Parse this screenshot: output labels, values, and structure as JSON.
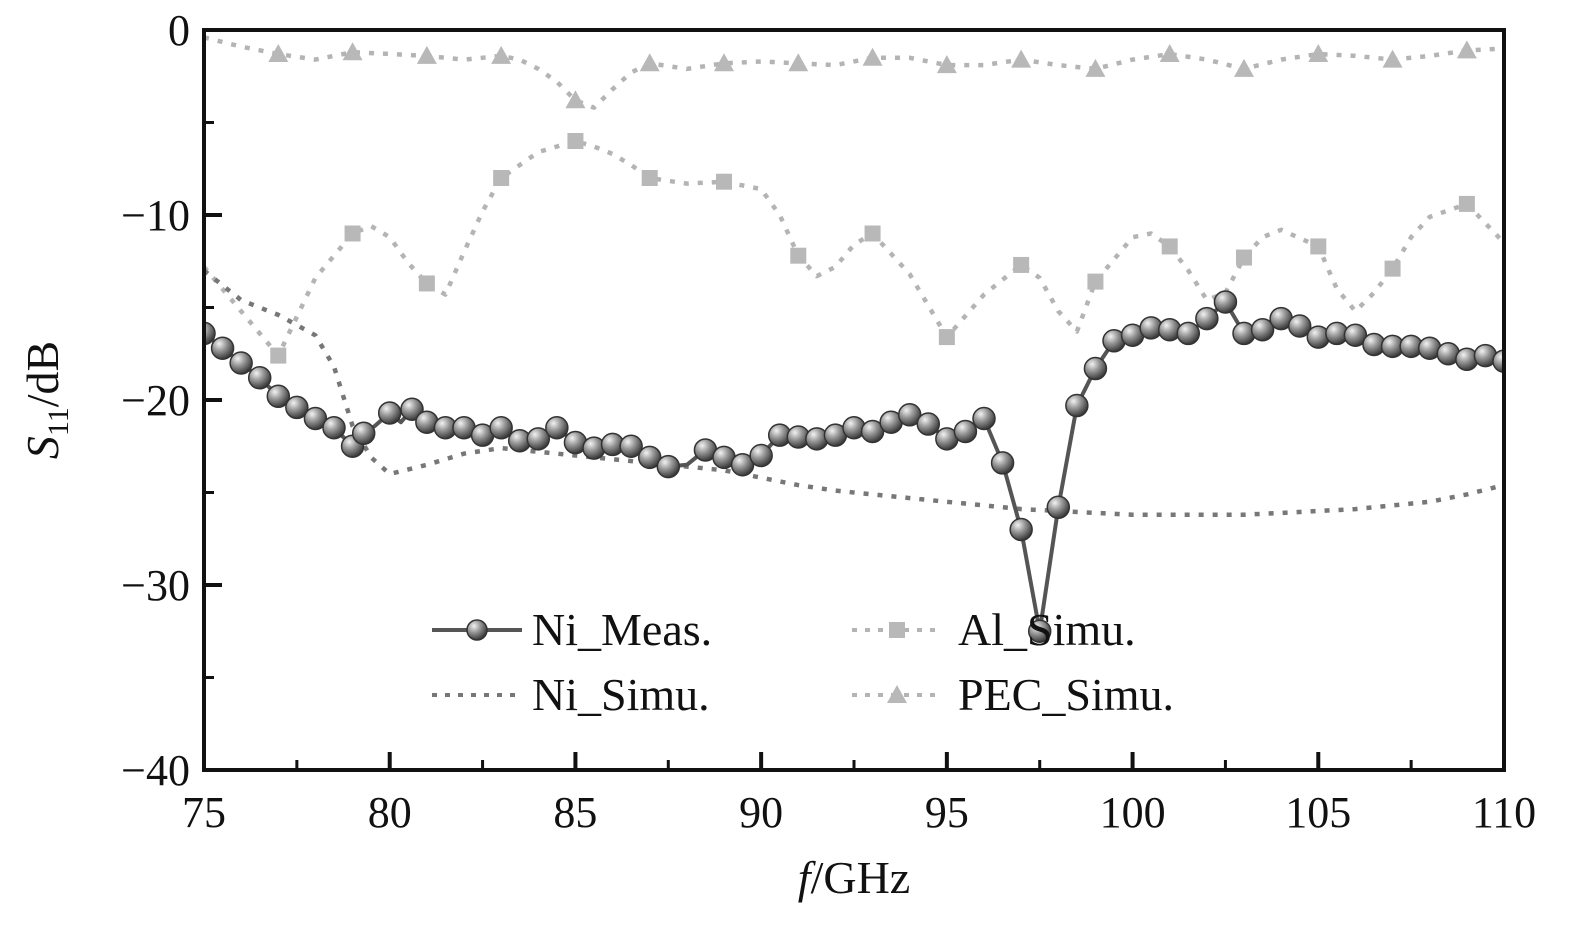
{
  "chart_data": {
    "type": "line",
    "title": "",
    "xlabel": {
      "italic": "f",
      "rest": "/GHz"
    },
    "ylabel": {
      "italic": "S",
      "sub": "11",
      "rest": "/dB"
    },
    "xlim": [
      75,
      110
    ],
    "ylim": [
      -40,
      0
    ],
    "xticks": [
      75,
      80,
      85,
      90,
      95,
      100,
      105,
      110
    ],
    "yticks": [
      0,
      -10,
      -20,
      -30,
      -40
    ],
    "xtick_labels": [
      "75",
      "80",
      "85",
      "90",
      "95",
      "100",
      "105",
      "110"
    ],
    "ytick_labels": [
      "0",
      "−10",
      "−20",
      "−30",
      "−40"
    ],
    "grid": false,
    "legend_position": "bottom-center",
    "series": [
      {
        "name": "Ni_Meas.",
        "color": "#555555",
        "style": "solid",
        "marker": "sphere",
        "x": [
          75,
          75.5,
          76,
          76.5,
          77,
          77.5,
          78,
          78.5,
          79,
          79.3,
          79.6,
          80,
          80.3,
          80.6,
          81,
          81.5,
          82,
          82.5,
          83,
          83.5,
          84,
          84.5,
          85,
          85.5,
          86,
          86.5,
          87,
          87.5,
          88,
          88.5,
          89,
          89.5,
          90,
          90.5,
          91,
          91.5,
          92,
          92.5,
          93,
          93.5,
          94,
          94.5,
          95,
          95.5,
          96,
          96.5,
          97,
          97.5,
          98,
          98.5,
          99,
          99.5,
          100,
          100.5,
          101,
          101.5,
          102,
          102.5,
          103,
          103.5,
          104,
          104.5,
          105,
          105.5,
          106,
          106.5,
          107,
          107.5,
          108,
          108.5,
          109,
          109.5,
          110
        ],
        "y": [
          -16.4,
          -17.2,
          -18,
          -18.8,
          -19.8,
          -20.4,
          -21,
          -21.5,
          -22.5,
          -21.8,
          -21.4,
          -20.7,
          -21.2,
          -20.5,
          -21.2,
          -21.5,
          -21.5,
          -21.9,
          -21.5,
          -22.2,
          -22.1,
          -21.5,
          -22.3,
          -22.6,
          -22.4,
          -22.5,
          -23.1,
          -23.6,
          -23.5,
          -22.7,
          -23.1,
          -23.5,
          -23,
          -21.9,
          -22,
          -22.1,
          -21.9,
          -21.5,
          -21.7,
          -21.2,
          -20.8,
          -21.3,
          -22.1,
          -21.7,
          -21,
          -23.4,
          -27,
          -32.5,
          -25.8,
          -20.3,
          -18.3,
          -16.8,
          -16.5,
          -16.1,
          -16.2,
          -16.4,
          -15.6,
          -14.7,
          -16.4,
          -16.2,
          -15.6,
          -16,
          -16.6,
          -16.4,
          -16.5,
          -17,
          -17.1,
          -17.1,
          -17.2,
          -17.5,
          -17.8,
          -17.6,
          -17.9
        ],
        "marker_x": [
          75,
          75.5,
          76,
          76.5,
          77,
          77.5,
          78,
          78.5,
          79,
          79.3,
          80,
          80.6,
          81,
          81.5,
          82,
          82.5,
          83,
          83.5,
          84,
          84.5,
          85,
          85.5,
          86,
          86.5,
          87,
          87.5,
          88.5,
          89,
          89.5,
          90,
          90.5,
          91,
          91.5,
          92,
          92.5,
          93,
          93.5,
          94,
          94.5,
          95,
          95.5,
          96,
          96.5,
          97,
          97.5,
          98,
          98.5,
          99,
          99.5,
          100,
          100.5,
          101,
          101.5,
          102,
          102.5,
          103,
          103.5,
          104,
          104.5,
          105,
          105.5,
          106,
          106.5,
          107,
          107.5,
          108,
          108.5,
          109,
          109.5,
          110
        ]
      },
      {
        "name": "Ni_Simu.",
        "color": "#777777",
        "style": "dotted",
        "marker": "none",
        "x": [
          75,
          76,
          77,
          78,
          78.5,
          79,
          79.5,
          80,
          81,
          82,
          83,
          84,
          85,
          86,
          87,
          88,
          89,
          90,
          91,
          92,
          93,
          94,
          95,
          96,
          97,
          98,
          99,
          100,
          101,
          102,
          103,
          104,
          105,
          106,
          107,
          108,
          109,
          110
        ],
        "y": [
          -13,
          -14.6,
          -15.4,
          -16.5,
          -18.2,
          -21.4,
          -23.1,
          -24,
          -23.5,
          -22.9,
          -22.6,
          -22.8,
          -23.0,
          -23.2,
          -23.4,
          -23.6,
          -23.8,
          -24.2,
          -24.6,
          -24.9,
          -25.1,
          -25.3,
          -25.5,
          -25.7,
          -25.9,
          -26.0,
          -26.1,
          -26.2,
          -26.2,
          -26.2,
          -26.2,
          -26.1,
          -26.0,
          -25.9,
          -25.7,
          -25.5,
          -25.1,
          -24.6
        ]
      },
      {
        "name": "Al_Simu.",
        "color": "#b4b4b4",
        "style": "dotted",
        "marker": "square",
        "x": [
          75,
          76,
          77,
          78,
          79,
          79.5,
          80,
          80.5,
          81,
          81.5,
          82,
          82.5,
          83,
          84,
          85,
          85.5,
          86,
          86.5,
          87,
          88,
          89,
          90,
          90.5,
          91,
          91.5,
          92,
          92.5,
          93,
          94,
          95,
          96,
          97,
          97.5,
          98,
          98.5,
          99,
          100,
          100.5,
          101,
          101.5,
          102,
          102.5,
          103,
          103.5,
          104,
          105,
          105.5,
          106,
          106.5,
          107,
          107.5,
          108,
          109,
          110
        ],
        "y": [
          -12.8,
          -15.2,
          -17.6,
          -13.4,
          -11,
          -10.6,
          -11.2,
          -12.6,
          -13.7,
          -14.3,
          -12,
          -9.8,
          -8,
          -6.6,
          -6,
          -6.3,
          -6.7,
          -7.3,
          -8,
          -8.3,
          -8.2,
          -8.6,
          -10,
          -12.2,
          -13.3,
          -12.8,
          -11.6,
          -11,
          -13.2,
          -16.6,
          -14.3,
          -12.7,
          -13.4,
          -15.2,
          -16.3,
          -13.6,
          -11.2,
          -11,
          -11.7,
          -13,
          -14.6,
          -14.2,
          -12.3,
          -11.2,
          -10.8,
          -11.7,
          -14,
          -15.2,
          -14.2,
          -12.9,
          -11.2,
          -10.1,
          -9.4,
          -11.5
        ],
        "marker_x": [
          77,
          79,
          81,
          83,
          85,
          87,
          89,
          91,
          93,
          95,
          97,
          99,
          101,
          103,
          105,
          107,
          109
        ]
      },
      {
        "name": "PEC_Simu.",
        "color": "#b4b4b4",
        "style": "dotted",
        "marker": "triangle",
        "x": [
          75,
          76,
          77,
          78,
          79,
          80,
          81,
          82,
          83,
          83.5,
          84,
          84.5,
          85,
          85.5,
          86,
          86.5,
          87,
          88,
          89,
          90,
          91,
          92,
          93,
          94,
          95,
          96,
          97,
          98,
          99,
          100,
          101,
          102,
          103,
          104,
          105,
          106,
          107,
          108,
          109,
          110
        ],
        "y": [
          -0.4,
          -0.9,
          -1.3,
          -1.6,
          -1.2,
          -1.3,
          -1.4,
          -1.6,
          -1.4,
          -1.6,
          -2.1,
          -2.8,
          -3.8,
          -4.2,
          -3.2,
          -2.3,
          -1.8,
          -2.1,
          -1.8,
          -1.7,
          -1.8,
          -1.9,
          -1.5,
          -1.5,
          -1.9,
          -1.9,
          -1.6,
          -1.9,
          -2.1,
          -1.6,
          -1.3,
          -1.6,
          -2.1,
          -1.6,
          -1.3,
          -1.4,
          -1.6,
          -1.4,
          -1.1,
          -1.0
        ],
        "marker_x": [
          77,
          79,
          81,
          83,
          85,
          87,
          89,
          91,
          93,
          95,
          97,
          99,
          101,
          103,
          105,
          107,
          109
        ]
      }
    ]
  }
}
